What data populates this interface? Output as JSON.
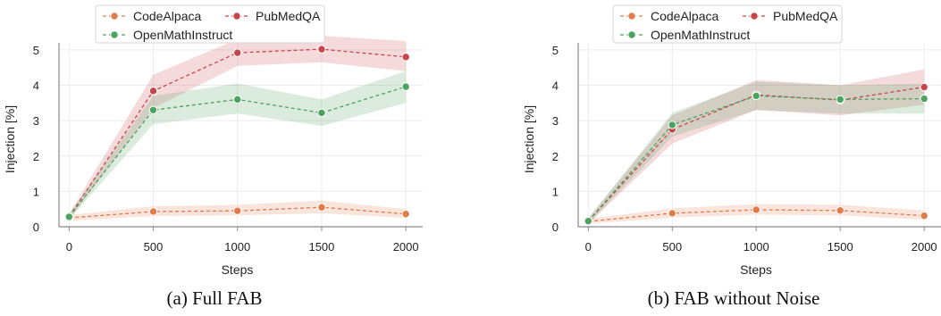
{
  "chart_data": [
    {
      "type": "line",
      "caption": "(a) Full FAB",
      "xlabel": "Steps",
      "ylabel": "Injection [%]",
      "x": [
        0,
        500,
        1000,
        1500,
        2000
      ],
      "xticks": [
        "0",
        "500",
        "1000",
        "1500",
        "2000"
      ],
      "yticks": [
        "0",
        "1",
        "2",
        "3",
        "4",
        "5"
      ],
      "xlim": [
        -60,
        2100
      ],
      "ylim": [
        0,
        5.2
      ],
      "grid": true,
      "legend_placement": "top-center",
      "series": [
        {
          "name": "CodeAlpaca",
          "color": "#e07b4a",
          "values": [
            0.25,
            0.43,
            0.45,
            0.55,
            0.36
          ],
          "lower": [
            0.17,
            0.3,
            0.32,
            0.38,
            0.25
          ],
          "upper": [
            0.33,
            0.58,
            0.62,
            0.74,
            0.5
          ]
        },
        {
          "name": "PubMedQA",
          "color": "#c9454c",
          "values": [
            0.28,
            3.84,
            4.92,
            5.02,
            4.8
          ],
          "lower": [
            0.2,
            3.35,
            4.55,
            4.65,
            4.4
          ],
          "upper": [
            0.36,
            4.3,
            5.3,
            5.4,
            5.25
          ]
        },
        {
          "name": "OpenMathInstruct",
          "color": "#4ca25f",
          "values": [
            0.28,
            3.3,
            3.6,
            3.22,
            3.96
          ],
          "lower": [
            0.2,
            2.9,
            3.2,
            2.85,
            3.5
          ],
          "upper": [
            0.36,
            3.7,
            4.05,
            3.6,
            4.4
          ]
        }
      ]
    },
    {
      "type": "line",
      "caption": "(b) FAB without Noise",
      "xlabel": "Steps",
      "ylabel": "Injection [%]",
      "x": [
        0,
        500,
        1000,
        1500,
        2000
      ],
      "xticks": [
        "0",
        "500",
        "1000",
        "1500",
        "2000"
      ],
      "yticks": [
        "0",
        "1",
        "2",
        "3",
        "4",
        "5"
      ],
      "xlim": [
        -60,
        2100
      ],
      "ylim": [
        0,
        5.2
      ],
      "grid": true,
      "legend_placement": "top-center",
      "series": [
        {
          "name": "CodeAlpaca",
          "color": "#e07b4a",
          "values": [
            0.15,
            0.38,
            0.48,
            0.46,
            0.31
          ],
          "lower": [
            0.08,
            0.26,
            0.34,
            0.32,
            0.2
          ],
          "upper": [
            0.22,
            0.52,
            0.64,
            0.62,
            0.46
          ]
        },
        {
          "name": "PubMedQA",
          "color": "#c9454c",
          "values": [
            0.16,
            2.75,
            3.73,
            3.58,
            3.95
          ],
          "lower": [
            0.08,
            2.35,
            3.3,
            3.15,
            3.45
          ],
          "upper": [
            0.24,
            3.15,
            4.15,
            4.0,
            4.45
          ]
        },
        {
          "name": "OpenMathInstruct",
          "color": "#4ca25f",
          "values": [
            0.16,
            2.88,
            3.7,
            3.6,
            3.62
          ],
          "lower": [
            0.08,
            2.55,
            3.3,
            3.2,
            3.2
          ],
          "upper": [
            0.24,
            3.22,
            4.1,
            4.0,
            4.05
          ]
        }
      ]
    }
  ]
}
